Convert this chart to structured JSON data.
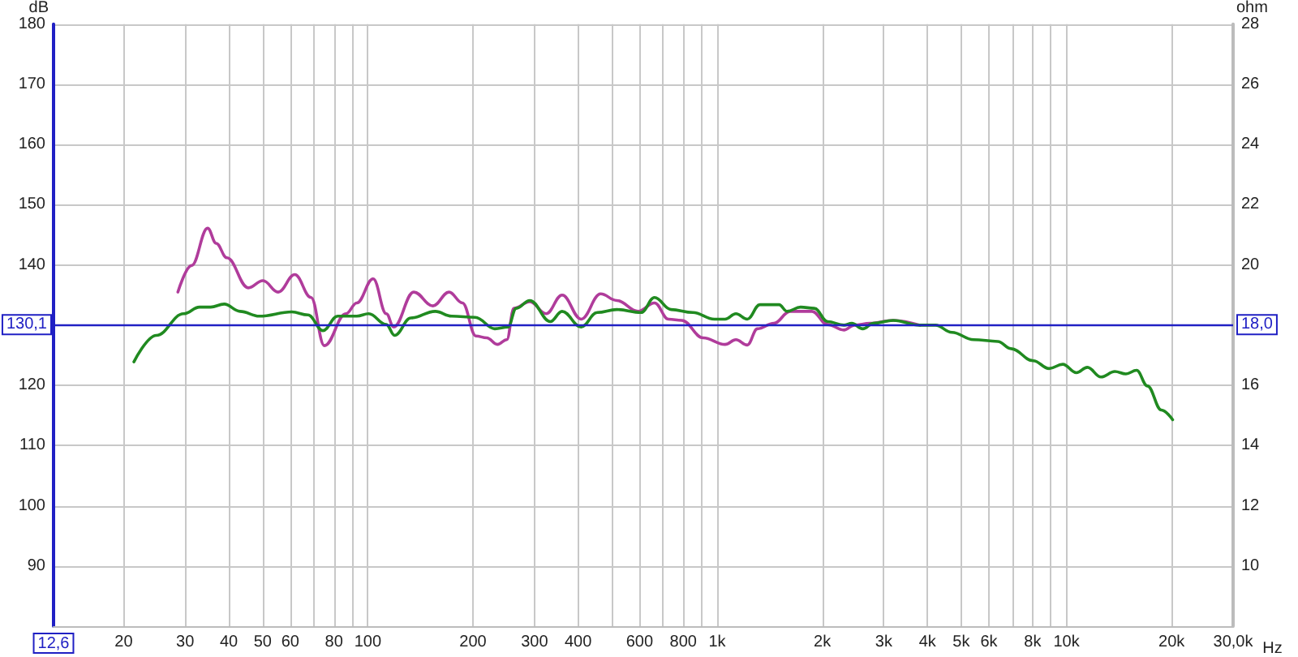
{
  "chart_data": {
    "type": "line",
    "xlabel": "Hz",
    "ylabel": "dB",
    "y2label": "ohm",
    "log": "x",
    "grid": true,
    "marker": "none",
    "line_style": "solid",
    "xlim": [
      12.6,
      30000
    ],
    "xticks": [
      20,
      30,
      40,
      50,
      60,
      {
        "value": 70,
        "label": null
      },
      80,
      {
        "value": 90,
        "label": null
      },
      100,
      200,
      300,
      400,
      {
        "value": 500,
        "label": null
      },
      600,
      {
        "value": 700,
        "label": null
      },
      800,
      {
        "value": 900,
        "label": null
      },
      {
        "value": 1000,
        "label": "1k"
      },
      {
        "value": 2000,
        "label": "2k"
      },
      {
        "value": 3000,
        "label": "3k"
      },
      {
        "value": 4000,
        "label": "4k"
      },
      {
        "value": 5000,
        "label": "5k"
      },
      {
        "value": 6000,
        "label": "6k"
      },
      {
        "value": 7000,
        "label": null
      },
      {
        "value": 8000,
        "label": "8k"
      },
      {
        "value": 9000,
        "label": null
      },
      {
        "value": 10000,
        "label": "10k"
      },
      {
        "value": 20000,
        "label": "20k"
      },
      {
        "value": 30000,
        "label": "30,0k"
      }
    ],
    "ylim": [
      80,
      180
    ],
    "yticks": [
      90,
      100,
      110,
      120,
      140,
      150,
      160,
      170,
      180
    ],
    "y2lim": [
      8,
      28
    ],
    "y2ticks": [
      10,
      12,
      14,
      16,
      20,
      22,
      24,
      26,
      28
    ],
    "ref_lines": [
      {
        "axis": "y",
        "value": 130.1,
        "label": "130,1",
        "color": "#2020c4"
      }
    ],
    "annotations": [
      {
        "text": "18,0",
        "x": 30000,
        "y": 130.1
      },
      "12,6"
    ],
    "series": [
      {
        "color": "#b03c9b",
        "x": [
          28.6,
          31.3,
          34.8,
          36.8,
          39.5,
          45.5,
          50.1,
          55.4,
          61.8,
          68.8,
          75.1,
          86.6,
          93,
          103.6,
          113,
          118.6,
          135.4,
          153.6,
          170.8,
          186.6,
          204,
          219,
          235,
          250,
          262,
          291,
          324,
          360,
          408,
          464,
          516,
          594,
          662,
          726,
          792,
          912,
          1054,
          1132,
          1220,
          1304,
          1454,
          1618,
          1868,
          2072,
          2306,
          2470,
          2740,
          3192,
          3806
        ],
        "values": [
          135.5,
          139.9,
          146.1,
          143.6,
          141.2,
          136.2,
          137.4,
          135.5,
          138.4,
          134.6,
          126.6,
          131.9,
          133.7,
          137.7,
          131.9,
          129.7,
          135.5,
          133.2,
          135.5,
          133.7,
          128.2,
          127.9,
          126.8,
          127.6,
          132.8,
          133.9,
          131.9,
          135,
          131,
          135.2,
          134.1,
          132.3,
          133.7,
          131,
          130.8,
          127.9,
          126.8,
          127.6,
          126.7,
          129.4,
          130.3,
          132.3,
          132.3,
          130.1,
          129.2,
          130,
          130.3,
          130.8,
          130
        ]
      },
      {
        "color": "#208a20",
        "x": [
          21.4,
          24.8,
          29.7,
          33,
          35.5,
          38.8,
          43.1,
          48.9,
          60.6,
          67.4,
          74.4,
          82,
          93,
          100.6,
          113,
          119.3,
          132.8,
          156,
          173.8,
          203,
          231,
          252,
          266,
          291,
          333,
          360,
          408,
          454,
          516,
          606,
          662,
          738,
          852,
          982,
          1054,
          1132,
          1220,
          1326,
          1504,
          1586,
          1734,
          1898,
          2072,
          2306,
          2430,
          2612,
          2800,
          3192,
          3806,
          4220,
          4700,
          5420,
          6360,
          6940,
          8030,
          8920,
          9760,
          10680,
          11480,
          12560,
          13760,
          14800,
          15880,
          17060,
          18700,
          20140
        ],
        "values": [
          123.9,
          128.3,
          131.9,
          133,
          133,
          133.5,
          132.3,
          131.5,
          132.2,
          131.7,
          129.1,
          131.5,
          131.5,
          131.9,
          130.1,
          128.3,
          131.2,
          132.3,
          131.5,
          131.3,
          129.4,
          129.7,
          132.8,
          134.1,
          130.6,
          132.3,
          129.7,
          132.1,
          132.6,
          132.1,
          134.6,
          132.6,
          132.1,
          131,
          131,
          131.9,
          131,
          133.4,
          133.4,
          132.3,
          133,
          132.8,
          130.6,
          130,
          130.3,
          129.4,
          130.3,
          130.8,
          130,
          130,
          128.8,
          127.6,
          127.3,
          126.1,
          124.1,
          122.8,
          123.5,
          122.1,
          123,
          121.4,
          122.3,
          121.9,
          122.5,
          119.9,
          115.9,
          114.3
        ]
      }
    ]
  }
}
